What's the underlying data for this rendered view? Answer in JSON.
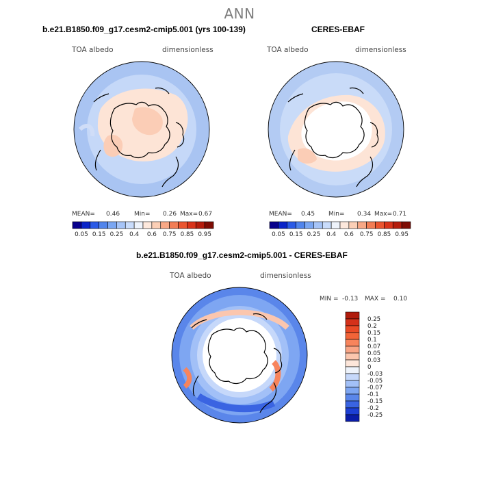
{
  "season": "ANN",
  "panels": [
    {
      "title": "b.e21.B1850.f09_g17.cesm2-cmip5.001 (yrs 100-139)",
      "variable": "TOA albedo",
      "units": "dimensionless",
      "stats": {
        "mean_label": "MEAN=",
        "mean": "0.46",
        "min_label": "Min=",
        "min": "0.26",
        "max_label": "Max=",
        "max": "0.67"
      }
    },
    {
      "title": "CERES-EBAF",
      "variable": "TOA albedo",
      "units": "dimensionless",
      "stats": {
        "mean_label": "MEAN=",
        "mean": "0.45",
        "min_label": "Min=",
        "min": "0.34",
        "max_label": "Max=",
        "max": "0.71"
      }
    },
    {
      "title": "b.e21.B1850.f09_g17.cesm2-cmip5.001 - CERES-EBAF",
      "variable": "TOA albedo",
      "units": "dimensionless",
      "stats": {
        "min_label": "MIN =",
        "min": "-0.13",
        "max_label": "MAX =",
        "max": "0.10"
      }
    }
  ],
  "colorbar_abs": {
    "ticks": [
      "0.05",
      "0.15",
      "0.25",
      "0.4",
      "0.6",
      "0.75",
      "0.85",
      "0.95"
    ],
    "colors": [
      "#08008c",
      "#0a24c8",
      "#2a5ae6",
      "#5084ec",
      "#7aa6f2",
      "#a6c4f7",
      "#c9dcfb",
      "#eef3fb",
      "#fde8dc",
      "#fbcfb6",
      "#f8a886",
      "#f27d55",
      "#ea5530",
      "#d8331a",
      "#b41c0c",
      "#7e0c04"
    ]
  },
  "colorbar_diff": {
    "labels": [
      "0.25",
      "0.2",
      "0.15",
      "0.1",
      "0.07",
      "0.05",
      "0.03",
      "0",
      "-0.03",
      "-0.05",
      "-0.07",
      "-0.1",
      "-0.15",
      "-0.2",
      "-0.25"
    ],
    "colors": [
      "#b01b0c",
      "#d4311a",
      "#e94a26",
      "#f26438",
      "#f7845c",
      "#f9a586",
      "#fbc6ae",
      "#fde6da",
      "#eef3fb",
      "#c6d8fa",
      "#a2c0f7",
      "#7ea6f2",
      "#5a86ea",
      "#3a64e2",
      "#1d3fd4",
      "#0a1ca8"
    ]
  }
}
